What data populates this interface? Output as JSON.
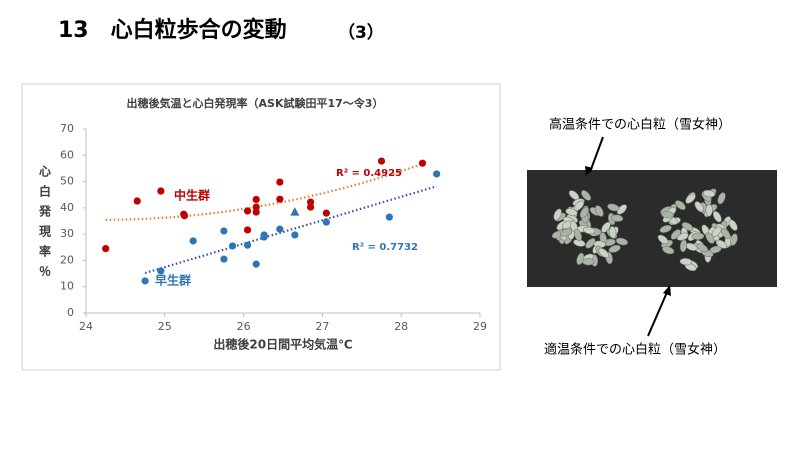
{
  "slide": {
    "title": "13　心白粒歩合の変動",
    "title_suffix": "（3）"
  },
  "chart_data": {
    "type": "scatter",
    "title": "出穂後気温と心白発現率（ASK試験田平17～令3）",
    "x_label": "出穂後20日間平均気温℃",
    "y_label": "心白発現率％",
    "xlim": [
      24,
      29
    ],
    "xticks": [
      24,
      25,
      26,
      27,
      28,
      29
    ],
    "ylim": [
      0,
      70
    ],
    "yticks": [
      0,
      10,
      20,
      30,
      40,
      50,
      60,
      70
    ],
    "series": [
      {
        "name": "中生群",
        "color": "#c00000",
        "trendline": "polynomial",
        "trend_color": "#ed7d31",
        "annotation": "R² = 0.4925",
        "x": [
          24.25,
          24.65,
          24.95,
          25.24,
          25.25,
          26.05,
          26.05,
          26.16,
          26.16,
          26.16,
          26.46,
          26.46,
          26.85,
          26.85,
          27.05,
          27.75,
          28.27
        ],
        "values": [
          24.5,
          42.6,
          46.4,
          37.6,
          37,
          38.8,
          31.6,
          43.2,
          40.3,
          38.4,
          49.8,
          43.3,
          42.2,
          40.3,
          38,
          57.8,
          57
        ]
      },
      {
        "name": "早生群",
        "color": "#2e75b6",
        "trendline": "linear",
        "trend_color": "#2e4fb6",
        "annotation": "R² = 0.7732",
        "x": [
          24.75,
          24.95,
          25.36,
          25.75,
          25.75,
          25.86,
          26.05,
          26.16,
          26.26,
          26.26,
          26.46,
          26.65,
          27.05,
          27.85,
          28.45,
          26.65
        ],
        "values": [
          12.2,
          16,
          27.4,
          31.2,
          20.5,
          25.5,
          25.8,
          18.6,
          28.9,
          29.7,
          31.9,
          29.7,
          34.6,
          36.5,
          52.9,
          38.4
        ],
        "markers": [
          "circle",
          "circle",
          "circle",
          "circle",
          "circle",
          "circle",
          "circle",
          "circle",
          "circle",
          "circle",
          "circle",
          "circle",
          "circle",
          "circle",
          "circle",
          "triangle"
        ]
      }
    ]
  },
  "photo": {
    "caption_top": "高温条件での心白粒（雪女神）",
    "caption_bottom": "適温条件での心白粒（雪女神）"
  }
}
